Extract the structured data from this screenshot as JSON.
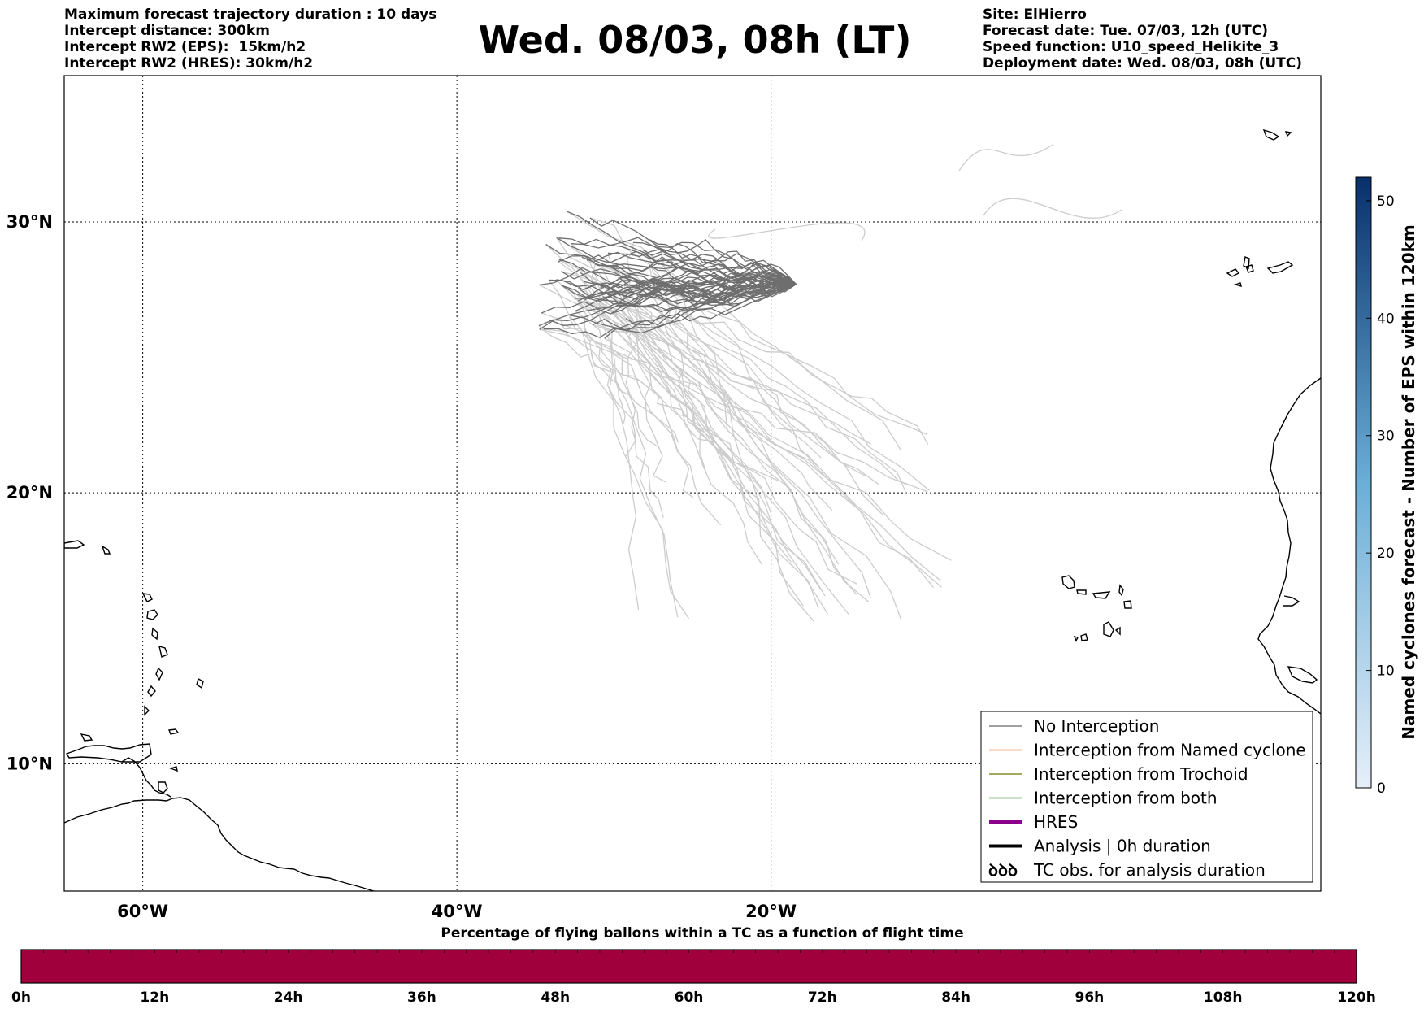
{
  "header_left": [
    "Maximum forecast trajectory duration : 10 days",
    "Intercept distance: 300km",
    "Intercept RW2 (EPS):  15km/h2",
    "Intercept RW2 (HRES): 30km/h2"
  ],
  "header_right": [
    "Site: ElHierro",
    "Forecast date: Tue. 07/03, 12h (UTC)",
    "Speed function: U10_speed_Helikite_3",
    "Deployment date: Wed. 08/03, 08h (UTC)"
  ],
  "title": "Wed. 08/03, 08h (LT)",
  "map": {
    "lon_range": [
      -65,
      15
    ],
    "lat_range": [
      5.3,
      35.4
    ],
    "lon_ticks": [
      {
        "value": -60,
        "label": "60°W"
      },
      {
        "value": -40,
        "label": "40°W"
      },
      {
        "value": -20,
        "label": "20°W"
      }
    ],
    "lat_ticks": [
      {
        "value": 30,
        "label": "30°N"
      },
      {
        "value": 20,
        "label": "20°N"
      },
      {
        "value": 10,
        "label": "10°N"
      }
    ],
    "gridlines": true,
    "release_site": {
      "lon": -18.4,
      "lat": 27.7
    },
    "trajectory_colors": {
      "no_interception": "#6e6e6e",
      "faded": "#cccccc"
    }
  },
  "legend": {
    "items": [
      {
        "label": "No Interception",
        "color": "#808080",
        "style": "thin"
      },
      {
        "label": "Interception from Named cyclone",
        "color": "#ef6c2e",
        "style": "thin"
      },
      {
        "label": "Interception from Trochoid",
        "color": "#8a8a2a",
        "style": "thin"
      },
      {
        "label": "Interception from both",
        "color": "#2e8b2e",
        "style": "thin"
      },
      {
        "label": "HRES",
        "color": "#8b008b",
        "style": "thick"
      },
      {
        "label": "Analysis | 0h duration",
        "color": "#000000",
        "style": "thick"
      },
      {
        "label": "TC obs. for analysis duration",
        "color": "#000000",
        "style": "symbol",
        "symbol": "ꝺꝺꝺ"
      }
    ]
  },
  "colorbar": {
    "label": "Named cyclones forecast - Number of EPS within 120km",
    "min": 0,
    "max": 52,
    "ticks": [
      {
        "label": "50",
        "value": 50
      },
      {
        "label": "40",
        "value": 40
      },
      {
        "label": "30",
        "value": 30
      },
      {
        "label": "20",
        "value": 20
      },
      {
        "label": "10",
        "value": 10
      },
      {
        "label": "0",
        "value": 0
      }
    ],
    "color_low": "#e6eff9",
    "color_high": "#08306b"
  },
  "progress_bar": {
    "title": "Percentage of flying ballons within a TC as a function of flight time",
    "ticks": [
      "0h",
      "12h",
      "24h",
      "36h",
      "48h",
      "60h",
      "72h",
      "84h",
      "96h",
      "108h",
      "120h"
    ],
    "color": "#a0003c",
    "segments": 60
  }
}
